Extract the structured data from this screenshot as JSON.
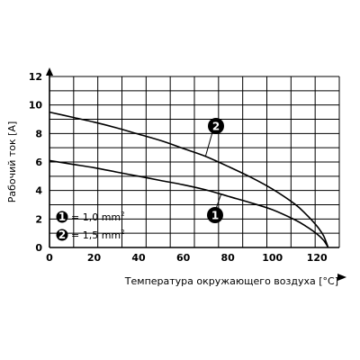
{
  "chart_data": {
    "type": "line",
    "xlabel": "Температура окружающего воздуха [°C]",
    "ylabel": "Рабочий ток [A]",
    "xlim": [
      0,
      130
    ],
    "ylim": [
      0,
      12
    ],
    "x_ticks": [
      0,
      20,
      40,
      60,
      80,
      100,
      120
    ],
    "y_ticks": [
      0,
      2,
      4,
      6,
      8,
      10,
      12
    ],
    "grid": true,
    "series": [
      {
        "id": "1",
        "x": [
          0,
          10,
          20,
          30,
          40,
          50,
          60,
          70,
          80,
          90,
          100,
          110,
          115,
          120,
          123,
          125
        ],
        "y": [
          6.1,
          5.85,
          5.6,
          5.3,
          5.0,
          4.7,
          4.4,
          4.05,
          3.6,
          3.15,
          2.65,
          1.95,
          1.5,
          0.95,
          0.5,
          0
        ]
      },
      {
        "id": "2",
        "x": [
          0,
          10,
          20,
          30,
          40,
          50,
          60,
          70,
          80,
          90,
          100,
          110,
          115,
          120,
          123,
          125
        ],
        "y": [
          9.5,
          9.15,
          8.8,
          8.4,
          7.95,
          7.5,
          6.95,
          6.4,
          5.7,
          4.95,
          4.1,
          3.05,
          2.35,
          1.5,
          0.8,
          0
        ]
      }
    ],
    "callouts": [
      {
        "id": "2",
        "label": "2",
        "anchor_x": 70,
        "anchor_y": 6.4
      },
      {
        "id": "1",
        "label": "1",
        "anchor_x": 77,
        "anchor_y": 3.75
      }
    ],
    "legend": {
      "position": "bottom-left",
      "items": [
        {
          "marker": "1",
          "text": "= 1,0 mm",
          "sup": "2"
        },
        {
          "marker": "2",
          "text": "= 1,5 mm",
          "sup": "2"
        }
      ]
    }
  }
}
